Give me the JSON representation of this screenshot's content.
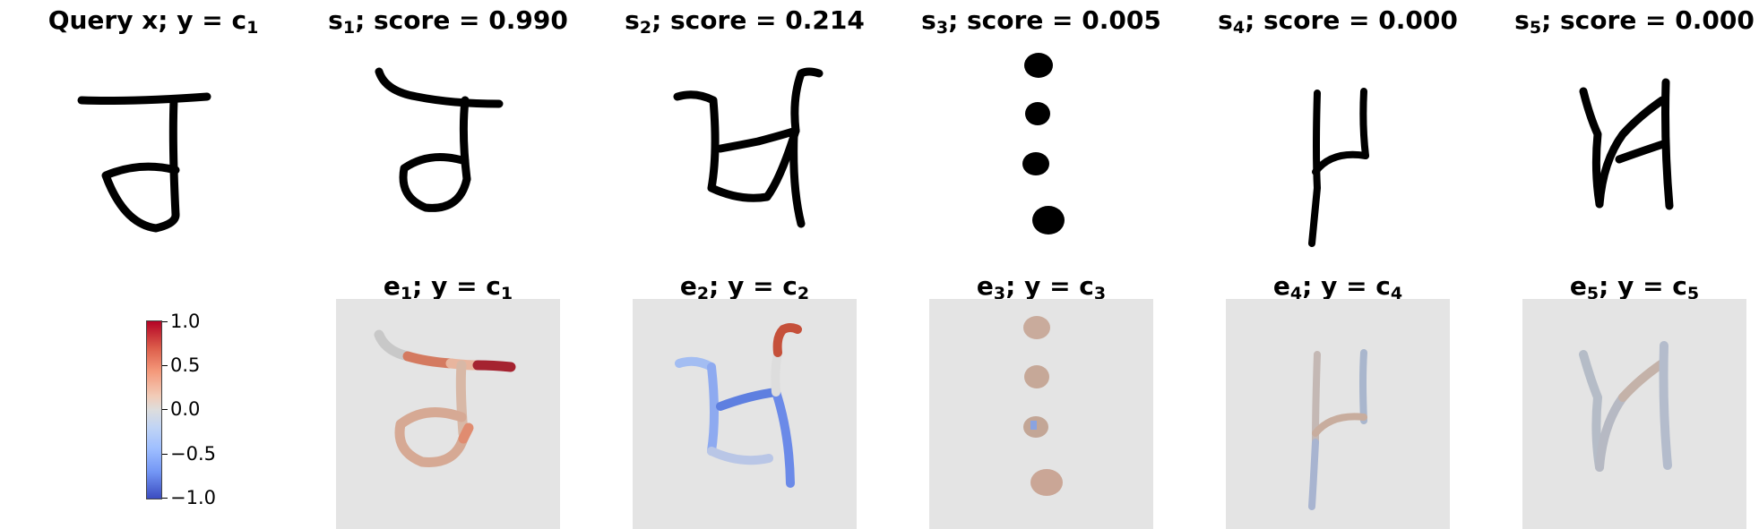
{
  "query": {
    "label": "Query x; y",
    "cls": "c",
    "cls_sub": "1"
  },
  "support": [
    {
      "s": "s",
      "s_sub": "1",
      "score_text": "; score = 0.990",
      "e": "e",
      "e_sub": "1",
      "cls_sub": "1",
      "score": 0.99
    },
    {
      "s": "s",
      "s_sub": "2",
      "score_text": "; score = 0.214",
      "e": "e",
      "e_sub": "2",
      "cls_sub": "2",
      "score": 0.214
    },
    {
      "s": "s",
      "s_sub": "3",
      "score_text": "; score = 0.005",
      "e": "e",
      "e_sub": "3",
      "cls_sub": "3",
      "score": 0.005
    },
    {
      "s": "s",
      "s_sub": "4",
      "score_text": "; score = 0.000",
      "e": "e",
      "e_sub": "4",
      "cls_sub": "4",
      "score": 0.0
    },
    {
      "s": "s",
      "s_sub": "5",
      "score_text": "; score = 0.000",
      "e": "e",
      "e_sub": "5",
      "cls_sub": "5",
      "score": 0.0
    }
  ],
  "explain_label": {
    "mid": "; y = ",
    "cls": "c"
  },
  "colorbar": {
    "ticks": [
      "1.0",
      "0.5",
      "0.0",
      "−0.5",
      "−1.0"
    ],
    "colormap": "coolwarm",
    "colors": {
      "high": "#b40426",
      "mid": "#dddddd",
      "low": "#3b4cc0"
    }
  }
}
